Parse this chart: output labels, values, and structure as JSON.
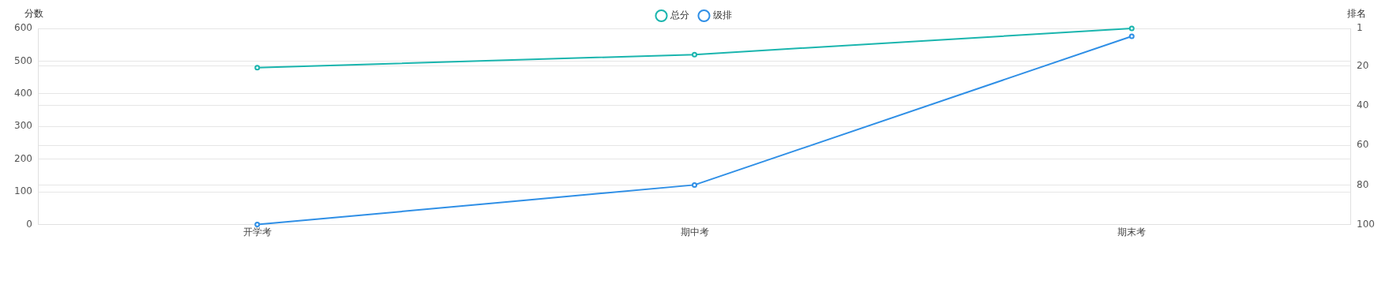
{
  "chart_data": {
    "type": "line",
    "xlabel": null,
    "ylabel": "分数",
    "y2label": "排名",
    "categories": [
      "开学考",
      "期中考",
      "期末考"
    ],
    "series": [
      {
        "name": "总分",
        "color": "#1ab5ae",
        "values": [
          480,
          520,
          600
        ]
      },
      {
        "name": "级排",
        "color": "#2f8fe6",
        "values": [
          100,
          80,
          5
        ],
        "axis": "y2"
      }
    ],
    "ylim": [
      0,
      600
    ],
    "yticks": [
      0,
      100,
      200,
      300,
      400,
      500,
      600
    ],
    "y2lim": [
      100,
      1
    ],
    "y2ticks": [
      1,
      20,
      40,
      60,
      80,
      100
    ],
    "grid": "y",
    "legend": "top",
    "marker": "circle",
    "line_style": "solid"
  }
}
